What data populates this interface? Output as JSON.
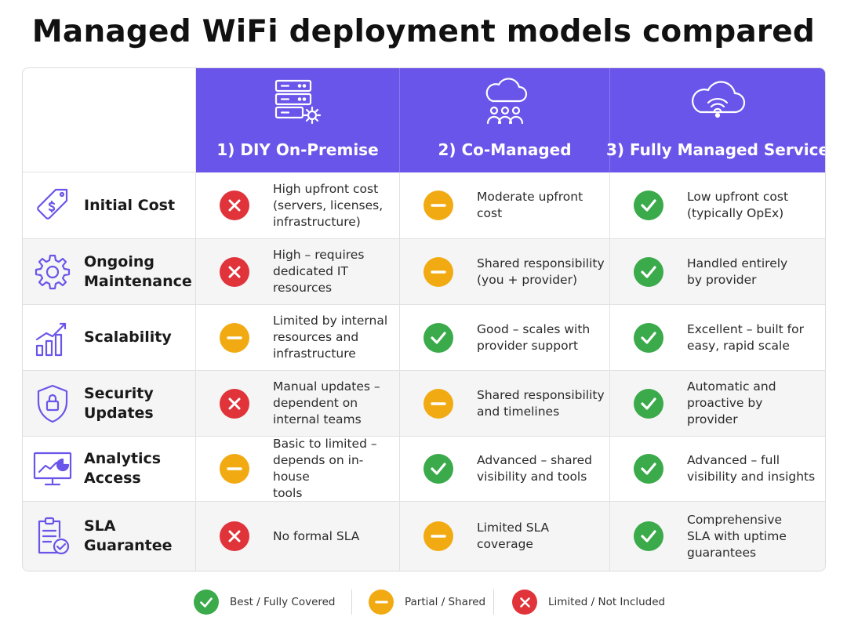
{
  "title": "Managed WiFi deployment models compared",
  "columns": [
    {
      "label": "1) DIY On-Premise",
      "icon": "server-gear-icon"
    },
    {
      "label": "2) Co-Managed",
      "icon": "cloud-people-icon"
    },
    {
      "label": "3) Fully Managed Service",
      "icon": "cloud-wifi-icon"
    }
  ],
  "rows": [
    {
      "label": "Initial Cost",
      "icon": "price-tag-icon",
      "cells": [
        {
          "status": "limited",
          "text": "High upfront cost\n(servers, licenses,\ninfrastructure)"
        },
        {
          "status": "partial",
          "text": "Moderate upfront\ncost"
        },
        {
          "status": "good",
          "text": "Low upfront cost\n(typically OpEx)"
        }
      ]
    },
    {
      "label": "Ongoing\nMaintenance",
      "icon": "gear-icon",
      "cells": [
        {
          "status": "limited",
          "text": "High – requires\ndedicated IT\nresources"
        },
        {
          "status": "partial",
          "text": "Shared responsibility\n(you + provider)"
        },
        {
          "status": "good",
          "text": "Handled entirely\nby provider"
        }
      ]
    },
    {
      "label": "Scalability",
      "icon": "growth-chart-icon",
      "cells": [
        {
          "status": "partial",
          "text": "Limited by internal\nresources and\ninfrastructure"
        },
        {
          "status": "good",
          "text": "Good –  scales with\nprovider support"
        },
        {
          "status": "good",
          "text": "Excellent – built for\neasy, rapid scale"
        }
      ]
    },
    {
      "label": "Security Updates",
      "icon": "shield-lock-icon",
      "cells": [
        {
          "status": "limited",
          "text": "Manual updates –\ndependent on\ninternal teams"
        },
        {
          "status": "partial",
          "text": "Shared responsibility\nand timelines"
        },
        {
          "status": "good",
          "text": "Automatic and\nproactive by\nprovider"
        }
      ]
    },
    {
      "label": "Analytics Access",
      "icon": "analytics-monitor-icon",
      "cells": [
        {
          "status": "partial",
          "text": "Basic to limited –\ndepends on in-house\ntools"
        },
        {
          "status": "good",
          "text": "Advanced – shared\nvisibility and tools"
        },
        {
          "status": "good",
          "text": "Advanced – full\nvisibility and insights"
        }
      ]
    },
    {
      "label": "SLA Guarantee",
      "icon": "clipboard-check-icon",
      "cells": [
        {
          "status": "limited",
          "text": "No formal SLA"
        },
        {
          "status": "partial",
          "text": "Limited SLA\ncoverage"
        },
        {
          "status": "good",
          "text": "Comprehensive\nSLA with uptime\nguarantees"
        }
      ]
    }
  ],
  "legend": [
    {
      "status": "good",
      "label": "Best / Fully Covered"
    },
    {
      "status": "partial",
      "label": "Partial / Shared"
    },
    {
      "status": "limited",
      "label": "Limited / Not Included"
    }
  ],
  "colors": {
    "header": "#6a55ea",
    "good": "#3aaa4a",
    "partial": "#f2aa12",
    "limited": "#e0333a",
    "icon": "#6a55ea"
  }
}
